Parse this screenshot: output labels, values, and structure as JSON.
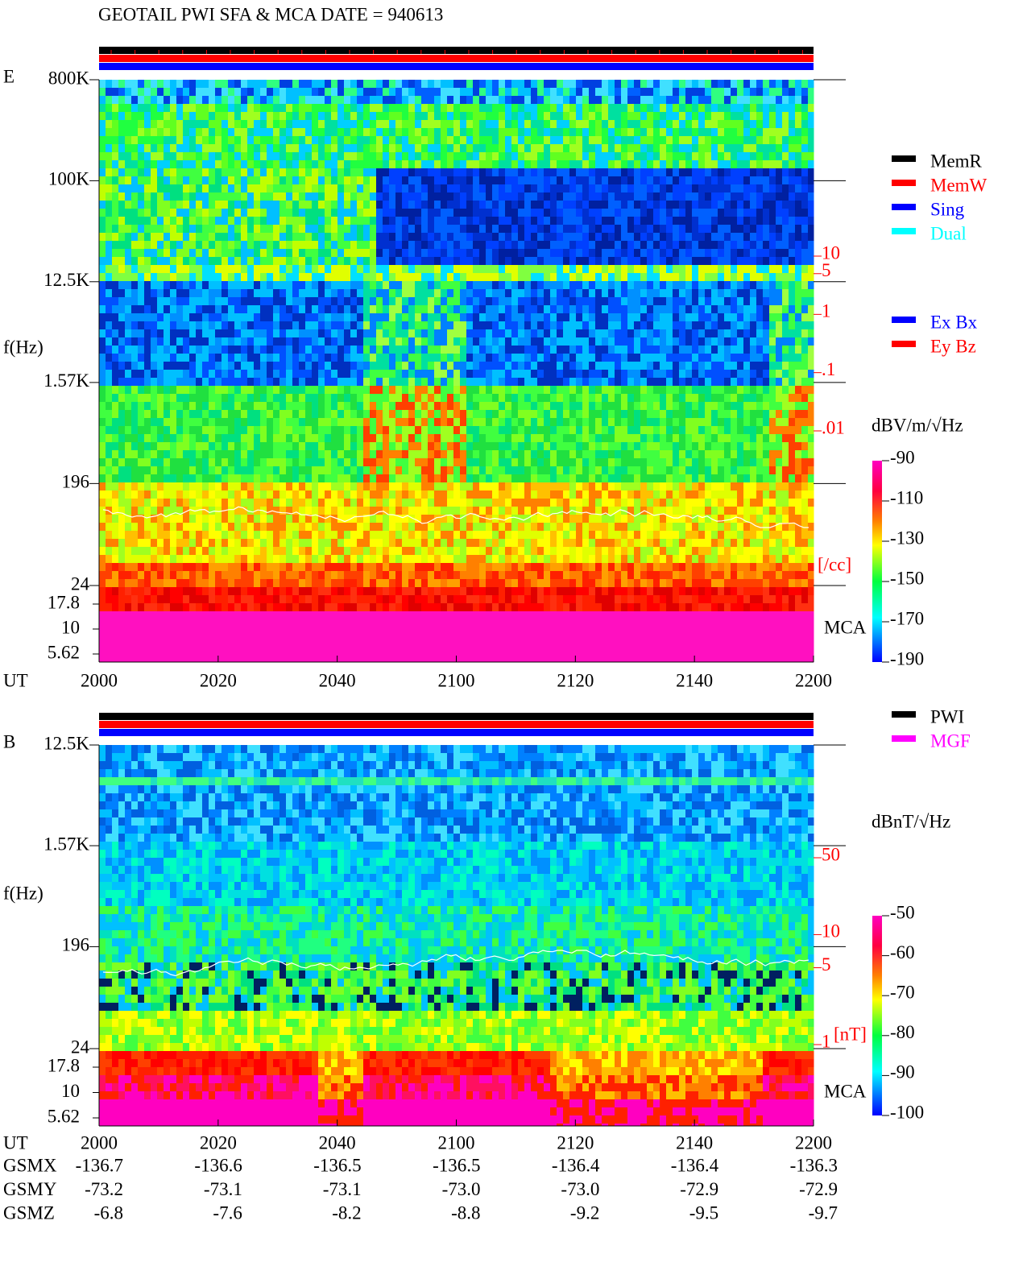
{
  "title": "GEOTAIL  PWI SFA & MCA   DATE = 940613",
  "panels": [
    {
      "label": "E",
      "y_label": "f(Hz)",
      "ylim": [
        24,
        800000
      ],
      "yticks": [
        {
          "value": 800000,
          "label": "800K"
        },
        {
          "value": 100000,
          "label": "100K"
        },
        {
          "value": 12500,
          "label": "12.5K"
        },
        {
          "value": 1570,
          "label": "1.57K"
        },
        196,
        24
      ],
      "mca_ylim": [
        5.62,
        17.8
      ],
      "mca_ticks": [
        17.8,
        10,
        5.62
      ],
      "mca_label": "MCA",
      "y2lim": [
        0.01,
        10
      ],
      "y2ticks": [
        10,
        5,
        1,
        {
          "value": 0.1,
          "label": ".1"
        },
        {
          "value": 0.01,
          "label": ".01"
        }
      ],
      "y2_label": "[/cc]",
      "x_label": "UT",
      "xticks": [
        "2000",
        "2020",
        "2040",
        "2100",
        "2120",
        "2140",
        "2200"
      ],
      "legend": [
        {
          "name": "MemR",
          "color": "#000000"
        },
        {
          "name": "MemW",
          "color": "#ff0000"
        },
        {
          "name": "Sing",
          "color": "#0000ff"
        },
        {
          "name": "Dual",
          "color": "#00ffff"
        }
      ],
      "legend2": [
        {
          "name": "Ex Bx",
          "color": "#0000ff"
        },
        {
          "name": "Ey Bz",
          "color": "#ff0000"
        }
      ],
      "colorbar": {
        "label": "dBV/m/√Hz",
        "lim": [
          -190,
          -90
        ],
        "ticks": [
          -90,
          -110,
          -130,
          -150,
          -170,
          -190
        ]
      }
    },
    {
      "label": "B",
      "y_label": "f(Hz)",
      "ylim": [
        24,
        12500
      ],
      "yticks": [
        {
          "value": 12500,
          "label": "12.5K"
        },
        {
          "value": 1570,
          "label": "1.57K"
        },
        196,
        24
      ],
      "mca_ylim": [
        5.62,
        17.8
      ],
      "mca_ticks": [
        17.8,
        10,
        5.62
      ],
      "mca_label": "MCA",
      "y2lim": [
        1,
        50
      ],
      "y2ticks": [
        50,
        10,
        5,
        1
      ],
      "y2_label": "[nT]",
      "x_label": "UT",
      "xticks": [
        "2000",
        "2020",
        "2040",
        "2100",
        "2120",
        "2140",
        "2200"
      ],
      "legend": [
        {
          "name": "PWI",
          "color": "#000000"
        },
        {
          "name": "MGF",
          "color": "#ff00ff"
        }
      ],
      "colorbar": {
        "label": "dBnT/√Hz",
        "lim": [
          -100,
          -50
        ],
        "ticks": [
          -50,
          -60,
          -70,
          -80,
          -90,
          -100
        ]
      }
    }
  ],
  "orbit": {
    "rows": [
      {
        "name": "GSMX",
        "values": [
          "-136.7",
          "-136.6",
          "-136.5",
          "-136.5",
          "-136.4",
          "-136.4",
          "-136.3"
        ]
      },
      {
        "name": "GSMY",
        "values": [
          "-73.2",
          "-73.1",
          "-73.1",
          "-73.0",
          "-73.0",
          "-72.9",
          "-72.9"
        ]
      },
      {
        "name": "GSMZ",
        "values": [
          "-6.8",
          "-7.6",
          "-8.2",
          "-8.8",
          "-9.2",
          "-9.5",
          "-9.7"
        ]
      }
    ]
  }
}
